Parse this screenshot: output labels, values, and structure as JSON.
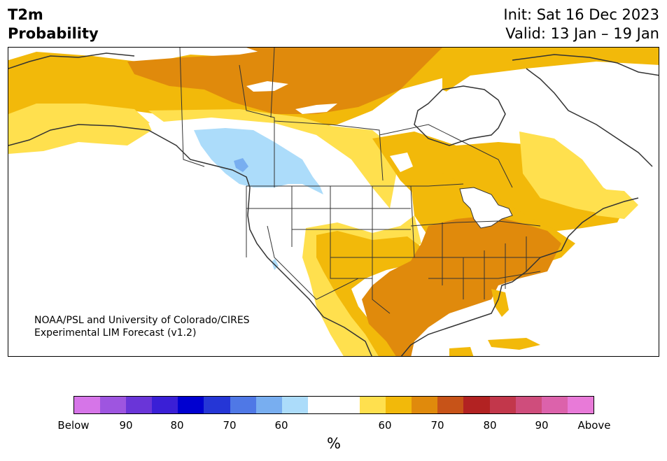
{
  "title": {
    "line1": "T2m",
    "line2": "Probability"
  },
  "header": {
    "init": "Init: Sat 16 Dec 2023",
    "valid": "Valid: 13 Jan – 19 Jan"
  },
  "credit": {
    "line1": "NOAA/PSL and University of Colorado/CIRES",
    "line2": "Experimental LIM Forecast (v1.2)"
  },
  "colorbar": {
    "colors": [
      "#d675e8",
      "#9e55e0",
      "#6a35d8",
      "#3a1fd6",
      "#0000d0",
      "#2536d6",
      "#4f78e6",
      "#78aef0",
      "#acdcfa",
      "#ffffff",
      "#ffffff",
      "#ffe04e",
      "#f2b90a",
      "#e08a0c",
      "#c75318",
      "#b22222",
      "#c2374b",
      "#cf4d7c",
      "#dc62ab",
      "#e87ad8"
    ],
    "tick_labels": [
      "Below",
      "90",
      "80",
      "70",
      "60",
      "60",
      "70",
      "80",
      "90",
      "Above"
    ],
    "unit": "%"
  },
  "map": {
    "region": "North America",
    "palette": {
      "light_blue": "#acdcfa",
      "blue": "#78aef0",
      "light_yellow": "#ffe04e",
      "yellow": "#f2b90a",
      "orange": "#e08a0c",
      "white": "#ffffff",
      "border": "#333333"
    }
  }
}
